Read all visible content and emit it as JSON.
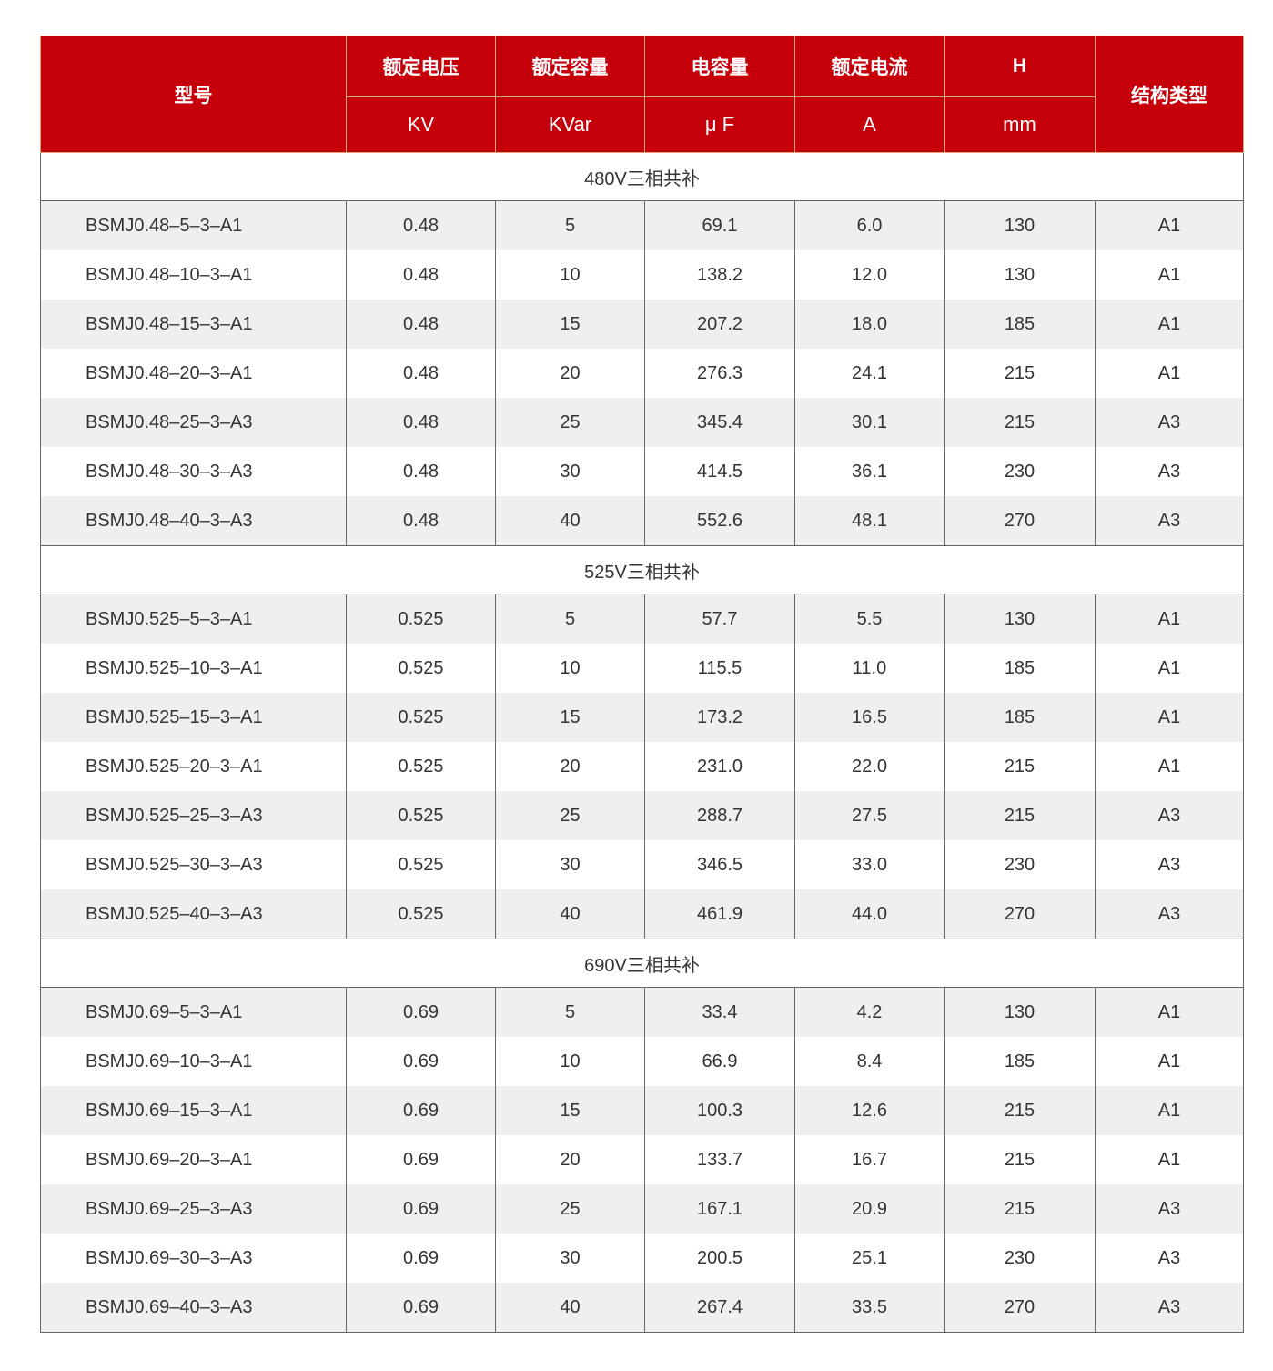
{
  "colors": {
    "header_bg": "#c5000b",
    "row_alt": "#efefef",
    "text": "#333333"
  },
  "header": {
    "model": "型号",
    "columns": [
      {
        "title": "额定电压",
        "unit": "KV"
      },
      {
        "title": "额定容量",
        "unit": "KVar"
      },
      {
        "title": "电容量",
        "unit": "μ F"
      },
      {
        "title": "额定电流",
        "unit": "A"
      },
      {
        "title": "H",
        "unit": "mm"
      }
    ],
    "structure": "结构类型"
  },
  "sections": [
    {
      "title": "480V三相共补",
      "rows": [
        [
          "BSMJ0.48–5–3–A1",
          "0.48",
          "5",
          "69.1",
          "6.0",
          "130",
          "A1"
        ],
        [
          "BSMJ0.48–10–3–A1",
          "0.48",
          "10",
          "138.2",
          "12.0",
          "130",
          "A1"
        ],
        [
          "BSMJ0.48–15–3–A1",
          "0.48",
          "15",
          "207.2",
          "18.0",
          "185",
          "A1"
        ],
        [
          "BSMJ0.48–20–3–A1",
          "0.48",
          "20",
          "276.3",
          "24.1",
          "215",
          "A1"
        ],
        [
          "BSMJ0.48–25–3–A3",
          "0.48",
          "25",
          "345.4",
          "30.1",
          "215",
          "A3"
        ],
        [
          "BSMJ0.48–30–3–A3",
          "0.48",
          "30",
          "414.5",
          "36.1",
          "230",
          "A3"
        ],
        [
          "BSMJ0.48–40–3–A3",
          "0.48",
          "40",
          "552.6",
          "48.1",
          "270",
          "A3"
        ]
      ]
    },
    {
      "title": "525V三相共补",
      "rows": [
        [
          "BSMJ0.525–5–3–A1",
          "0.525",
          "5",
          "57.7",
          "5.5",
          "130",
          "A1"
        ],
        [
          "BSMJ0.525–10–3–A1",
          "0.525",
          "10",
          "115.5",
          "11.0",
          "185",
          "A1"
        ],
        [
          "BSMJ0.525–15–3–A1",
          "0.525",
          "15",
          "173.2",
          "16.5",
          "185",
          "A1"
        ],
        [
          "BSMJ0.525–20–3–A1",
          "0.525",
          "20",
          "231.0",
          "22.0",
          "215",
          "A1"
        ],
        [
          "BSMJ0.525–25–3–A3",
          "0.525",
          "25",
          "288.7",
          "27.5",
          "215",
          "A3"
        ],
        [
          "BSMJ0.525–30–3–A3",
          "0.525",
          "30",
          "346.5",
          "33.0",
          "230",
          "A3"
        ],
        [
          "BSMJ0.525–40–3–A3",
          "0.525",
          "40",
          "461.9",
          "44.0",
          "270",
          "A3"
        ]
      ]
    },
    {
      "title": "690V三相共补",
      "rows": [
        [
          "BSMJ0.69–5–3–A1",
          "0.69",
          "5",
          "33.4",
          "4.2",
          "130",
          "A1"
        ],
        [
          "BSMJ0.69–10–3–A1",
          "0.69",
          "10",
          "66.9",
          "8.4",
          "185",
          "A1"
        ],
        [
          "BSMJ0.69–15–3–A1",
          "0.69",
          "15",
          "100.3",
          "12.6",
          "215",
          "A1"
        ],
        [
          "BSMJ0.69–20–3–A1",
          "0.69",
          "20",
          "133.7",
          "16.7",
          "215",
          "A1"
        ],
        [
          "BSMJ0.69–25–3–A3",
          "0.69",
          "25",
          "167.1",
          "20.9",
          "215",
          "A3"
        ],
        [
          "BSMJ0.69–30–3–A3",
          "0.69",
          "30",
          "200.5",
          "25.1",
          "230",
          "A3"
        ],
        [
          "BSMJ0.69–40–3–A3",
          "0.69",
          "40",
          "267.4",
          "33.5",
          "270",
          "A3"
        ]
      ]
    }
  ]
}
